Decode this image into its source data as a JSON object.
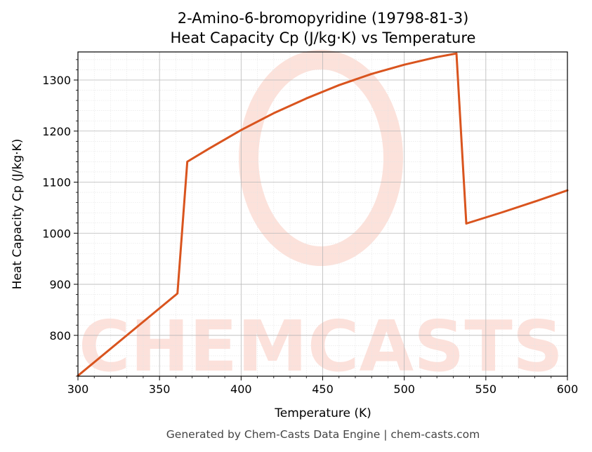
{
  "chart_data": {
    "type": "line",
    "title": "2-Amino-6-bromopyridine (19798-81-3)",
    "subtitle": "Heat Capacity Cp (J/kg·K) vs Temperature",
    "xlabel": "Temperature (K)",
    "ylabel": "Heat Capacity Cp (J/kg·K)",
    "xlim": [
      300,
      600
    ],
    "ylim": [
      720,
      1355
    ],
    "xticks": [
      300,
      350,
      400,
      450,
      500,
      550,
      600
    ],
    "yticks": [
      800,
      900,
      1000,
      1100,
      1200,
      1300
    ],
    "grid": true,
    "series": [
      {
        "color": "#d9541e",
        "x": [
          300,
          361,
          367,
          380,
          400,
          420,
          440,
          460,
          480,
          500,
          520,
          532,
          538,
          560,
          580,
          600
        ],
        "y": [
          721,
          882,
          1140,
          1165,
          1202,
          1235,
          1264,
          1290,
          1312,
          1330,
          1345,
          1352,
          1019,
          1041,
          1062,
          1084
        ]
      }
    ]
  },
  "watermark": "CHEMCASTS",
  "footer": "Generated by Chem-Casts Data Engine | chem-casts.com"
}
